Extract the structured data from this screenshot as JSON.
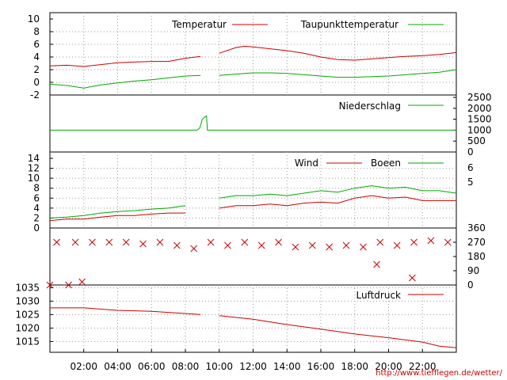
{
  "url": "http://www.tiefflegen.de/wetter/",
  "time_ticks": [
    "02:00",
    "04:00",
    "06:00",
    "08:00",
    "10:00",
    "12:00",
    "14:00",
    "16:00",
    "18:00",
    "20:00",
    "22:00"
  ],
  "colors": {
    "red": "#cc0000",
    "green": "#00aa00",
    "grid": "#999999",
    "frame": "#000000"
  },
  "chart_data": [
    {
      "type": "line",
      "legend": [
        "Temperatur",
        "Taupunkttemperatur"
      ],
      "y_ticks": [
        "10",
        "8",
        "6",
        "4",
        "2",
        "0",
        "-2"
      ],
      "ylim": [
        -2,
        10
      ],
      "grid": true,
      "x_hours": [
        0,
        1,
        2,
        3,
        4,
        5,
        6,
        7,
        8,
        8.9,
        9.3,
        10,
        11,
        11.5,
        12,
        13,
        14,
        15,
        16,
        17,
        18,
        19,
        20,
        21,
        22,
        23,
        24
      ],
      "series": [
        {
          "name": "Temperatur",
          "color": "#cc0000",
          "values": [
            2.6,
            2.7,
            2.5,
            2.8,
            3.1,
            3.2,
            3.3,
            3.3,
            3.8,
            4.1,
            null,
            4.6,
            5.5,
            5.7,
            5.6,
            5.3,
            5.0,
            4.6,
            4.0,
            3.6,
            3.5,
            3.7,
            3.9,
            4.1,
            4.2,
            4.4,
            4.7
          ]
        },
        {
          "name": "Taupunkttemperatur",
          "color": "#00aa00",
          "values": [
            -0.3,
            -0.5,
            -0.9,
            -0.4,
            -0.1,
            0.2,
            0.4,
            0.7,
            1.0,
            1.1,
            null,
            1.1,
            1.3,
            1.4,
            1.5,
            1.5,
            1.4,
            1.2,
            1.0,
            0.8,
            0.8,
            0.9,
            1.0,
            1.2,
            1.4,
            1.6,
            2.0
          ]
        }
      ]
    },
    {
      "type": "line",
      "legend": [
        "Niederschlag"
      ],
      "y_ticks": [
        "2500",
        "2000",
        "1500",
        "1000",
        "500",
        "0"
      ],
      "ylim": [
        0,
        2500
      ],
      "x_hours": [
        0,
        8.7,
        8.85,
        9.0,
        9.15,
        9.25,
        9.3,
        24
      ],
      "series": [
        {
          "name": "Niederschlag",
          "color": "#00aa00",
          "values": [
            1000,
            1000,
            1100,
            1500,
            1600,
            1650,
            1000,
            1000
          ]
        }
      ]
    },
    {
      "type": "line",
      "legend": [
        "Wind",
        "Boeen"
      ],
      "y_ticks": [
        "14",
        "12",
        "10",
        "8",
        "6",
        "4",
        "2",
        "0"
      ],
      "y2_ticks": [
        "6",
        "5"
      ],
      "ylim": [
        0,
        14
      ],
      "grid": true,
      "x_hours": [
        0,
        1,
        2,
        3,
        4,
        5,
        6,
        7,
        8,
        9,
        10,
        11,
        12,
        13,
        14,
        15,
        16,
        17,
        18,
        19,
        20,
        21,
        22,
        23,
        24
      ],
      "series": [
        {
          "name": "Wind",
          "color": "#cc0000",
          "values": [
            1.5,
            1.8,
            1.8,
            2.2,
            2.5,
            2.5,
            2.8,
            3.0,
            3.0,
            null,
            4.0,
            4.5,
            4.5,
            4.8,
            4.5,
            5.0,
            5.2,
            5.0,
            6.0,
            6.5,
            6.0,
            6.2,
            5.5,
            5.5,
            5.5
          ]
        },
        {
          "name": "Boeen",
          "color": "#00aa00",
          "values": [
            2.0,
            2.2,
            2.5,
            3.0,
            3.3,
            3.5,
            3.8,
            4.0,
            4.5,
            null,
            6.0,
            6.5,
            6.5,
            6.8,
            6.5,
            7.0,
            7.5,
            7.2,
            8.0,
            8.5,
            8.0,
            8.2,
            7.5,
            7.5,
            7.0
          ]
        }
      ]
    },
    {
      "type": "scatter",
      "y_ticks": [
        "360",
        "270",
        "180",
        "90",
        "0"
      ],
      "ylim": [
        0,
        360
      ],
      "points": [
        [
          0,
          0
        ],
        [
          1.1,
          0
        ],
        [
          1.9,
          20
        ],
        [
          0.4,
          270
        ],
        [
          1.5,
          270
        ],
        [
          2.5,
          270
        ],
        [
          3.5,
          270
        ],
        [
          4.5,
          270
        ],
        [
          5.5,
          260
        ],
        [
          6.5,
          270
        ],
        [
          7.5,
          250
        ],
        [
          8.5,
          230
        ],
        [
          9.5,
          270
        ],
        [
          10.5,
          250
        ],
        [
          11.5,
          270
        ],
        [
          12.5,
          250
        ],
        [
          13.5,
          270
        ],
        [
          14.5,
          240
        ],
        [
          15.5,
          250
        ],
        [
          16.5,
          240
        ],
        [
          17.5,
          250
        ],
        [
          18.5,
          240
        ],
        [
          19.5,
          270
        ],
        [
          20.5,
          250
        ],
        [
          21.5,
          270
        ],
        [
          22.5,
          280
        ],
        [
          23.5,
          270
        ],
        [
          19.3,
          130
        ],
        [
          21.4,
          45
        ]
      ]
    },
    {
      "type": "line",
      "legend": [
        "Luftdruck"
      ],
      "y_ticks": [
        "1035",
        "1030",
        "1025",
        "1020",
        "1015"
      ],
      "ylim": [
        1011,
        1036
      ],
      "grid": true,
      "x_hours": [
        0,
        2,
        4,
        6,
        8,
        8.9,
        9.3,
        10,
        12,
        14,
        16,
        18,
        20,
        22,
        23,
        24
      ],
      "series": [
        {
          "name": "Luftdruck",
          "color": "#cc0000",
          "values": [
            1027.5,
            1027.5,
            1026.6,
            1026.2,
            1025.4,
            1025.0,
            null,
            1024.6,
            1023.3,
            1021.3,
            1019.6,
            1017.8,
            1016.4,
            1014.8,
            1013.3,
            1012.7
          ]
        }
      ]
    }
  ]
}
